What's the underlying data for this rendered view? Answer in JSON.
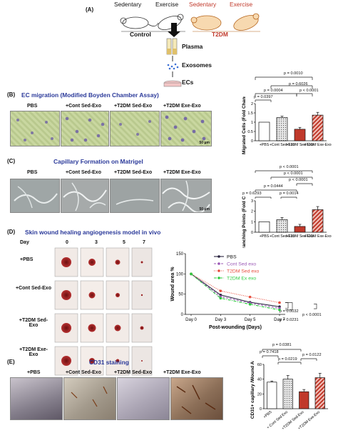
{
  "panelA": {
    "label": "(A)",
    "groups": [
      "Sedentary",
      "Exercise",
      "Sedentary",
      "Exercise"
    ],
    "control_label": "Control",
    "t2dm_label": "T2DM",
    "plasma_label": "Plasma",
    "exosomes_label": "Exosomes",
    "ecs_label": "ECs"
  },
  "panelB": {
    "label": "(B)",
    "title": "EC migration (Modified Boyden Chamber Assay)",
    "image_labels": [
      "PBS",
      "+Cont Sed-Exo",
      "+T2DM Sed-Exo",
      "+T2DM Exe-Exo"
    ],
    "scale_bar": "50 μm",
    "pvalues": [
      "p = 0.0010",
      "p = 0.6026",
      "p = 0.0004",
      "p = 0.0397",
      "p < 0.0001"
    ]
  },
  "panelC": {
    "label": "(C)",
    "title": "Capillary Formation on Matrigel",
    "image_labels": [
      "PBS",
      "+Cont Sed-Exo",
      "+T2DM Sed-Exo",
      "+T2DM Exe-Exo"
    ],
    "scale_bar": "50 μm",
    "pvalues": [
      "p < 0.0001",
      "p < 0.0001",
      "p < 0.0001",
      "p = 0.0444",
      "p = 0.6293",
      "p = 0.0014"
    ]
  },
  "panelD": {
    "label": "(D)",
    "title": "Skin wound healing angiogenesis model in vivo",
    "day_header": "Day",
    "days": [
      "0",
      "3",
      "5",
      "7"
    ],
    "row_labels": [
      "+PBS",
      "+Cont Sed-Exo",
      "+T2DM Sed-Exo",
      "+T2DM Exe-Exo"
    ],
    "pvalues": [
      "p = 0.0032",
      "p = 0.0231",
      "p < 0.0001"
    ]
  },
  "panelE": {
    "label": "(E)",
    "title": "CD31 staining",
    "image_labels": [
      "+PBS",
      "+Cont Sed-Exo",
      "+T2DM Sed-Exo",
      "+T2DM Exe-Exo"
    ],
    "pvalues": [
      "p = 0.0381",
      "p = 0.7418",
      "p = 0.0219",
      "p = 0.0122"
    ]
  },
  "colors": {
    "title_blue": "#2b3a9a",
    "t2dm_red": "#c0392b",
    "pbs_dark": "#2b2540",
    "cont_purple": "#9b59b6",
    "t2dm_sed_red": "#e74c3c",
    "t2dm_ex_green": "#2ecc40"
  },
  "chart_data": [
    {
      "type": "bar",
      "panel": "B",
      "categories": [
        "+PBS",
        "+Cont Sed-Exo",
        "+T2DM Sed-Exo",
        "+T2DM Exe-Exo"
      ],
      "values": [
        1.0,
        1.25,
        0.62,
        1.38
      ],
      "errors": [
        0.0,
        0.07,
        0.1,
        0.15
      ],
      "ylabel": "Migrated Cells (Fold Change)",
      "ylim": [
        0,
        2.0
      ],
      "yticks": [
        0.0,
        0.5,
        1.0,
        1.5,
        2.0
      ]
    },
    {
      "type": "bar",
      "panel": "C",
      "categories": [
        "+PBS",
        "+Cont Sed-Exo",
        "+T2DM Sed-Exo",
        "+T2DM Exe-Exo"
      ],
      "values": [
        1.0,
        1.2,
        0.55,
        2.15
      ],
      "errors": [
        0.0,
        0.2,
        0.2,
        0.3
      ],
      "ylabel": "Branching Points (Fold Change)",
      "ylim": [
        0,
        3
      ],
      "yticks": [
        0,
        1,
        2,
        3
      ]
    },
    {
      "type": "line",
      "panel": "D",
      "x": [
        "Day 0",
        "Day 3",
        "Day 5",
        "Day 7"
      ],
      "series": [
        {
          "name": "PBS",
          "values": [
            100,
            48,
            30,
            19
          ]
        },
        {
          "name": "Cont Sed exo",
          "values": [
            100,
            44,
            28,
            15
          ]
        },
        {
          "name": "T2DM Sed exo",
          "values": [
            100,
            58,
            43,
            29
          ]
        },
        {
          "name": "T2DM Ex exo",
          "values": [
            100,
            40,
            25,
            11
          ]
        }
      ],
      "xlabel": "Post-wounding (Days)",
      "ylabel": "Wound area %",
      "ylim": [
        0,
        150
      ],
      "yticks": [
        0,
        50,
        100,
        150
      ]
    },
    {
      "type": "bar",
      "panel": "E",
      "categories": [
        "+PBS",
        "+ Cont Sed Exo",
        "+T2DM Sed-Exo",
        "+T2DM Exe-Exo"
      ],
      "values": [
        36,
        40,
        23,
        42
      ],
      "errors": [
        1.5,
        5,
        3,
        6
      ],
      "ylabel": "CD31+ capillary /Wound Area",
      "ylim": [
        0,
        60
      ],
      "yticks": [
        0,
        20,
        40,
        60
      ]
    }
  ]
}
